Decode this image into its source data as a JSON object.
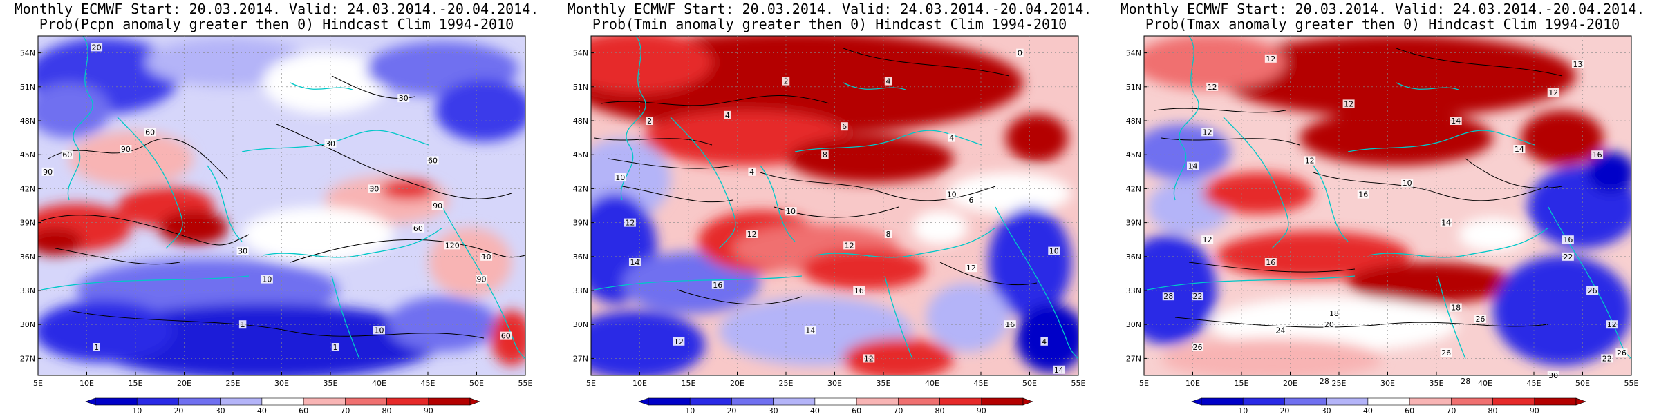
{
  "colors": {
    "prob_10": "#0000c8",
    "prob_20": "#2a2ae6",
    "prob_30": "#7070f0",
    "prob_40": "#b4b4f8",
    "prob_neutral": "#ffffff",
    "prob_60": "#f8b4b4",
    "prob_70": "#f07070",
    "prob_80": "#e62a2a",
    "prob_90": "#b40000",
    "coastline": "#00c8c8",
    "contour": "#000000"
  },
  "latitude_ticks": [
    "54N",
    "51N",
    "48N",
    "45N",
    "42N",
    "39N",
    "36N",
    "33N",
    "30N",
    "27N"
  ],
  "longitude_ticks": [
    "5E",
    "10E",
    "15E",
    "20E",
    "25E",
    "30E",
    "35E",
    "40E",
    "45E",
    "50E",
    "55E"
  ],
  "colorbar": {
    "labels": [
      "10",
      "20",
      "30",
      "40",
      "60",
      "70",
      "80",
      "90"
    ]
  },
  "panels": [
    {
      "title_line1": "Monthly ECMWF Start: 20.03.2014. Valid: 24.03.2014.-20.04.2014.",
      "title_line2": "Prob(Pcpn anomaly greater then 0) Hindcast Clim 1994-2010",
      "contour_labels": [
        {
          "text": "20",
          "lon": 11.0,
          "lat": 54.5
        },
        {
          "text": "60",
          "lon": 16.5,
          "lat": 47.0
        },
        {
          "text": "90",
          "lon": 14.0,
          "lat": 45.5
        },
        {
          "text": "60",
          "lon": 8.0,
          "lat": 45.0
        },
        {
          "text": "90",
          "lon": 6.0,
          "lat": 43.5
        },
        {
          "text": "30",
          "lon": 35.0,
          "lat": 46.0
        },
        {
          "text": "30",
          "lon": 42.5,
          "lat": 50.0
        },
        {
          "text": "30",
          "lon": 39.5,
          "lat": 42.0
        },
        {
          "text": "60",
          "lon": 45.5,
          "lat": 44.5
        },
        {
          "text": "90",
          "lon": 46.0,
          "lat": 40.5
        },
        {
          "text": "60",
          "lon": 44.0,
          "lat": 38.5
        },
        {
          "text": "120",
          "lon": 47.5,
          "lat": 37.0
        },
        {
          "text": "30",
          "lon": 26.0,
          "lat": 36.5
        },
        {
          "text": "10",
          "lon": 28.5,
          "lat": 34.0
        },
        {
          "text": "90",
          "lon": 50.5,
          "lat": 34.0
        },
        {
          "text": "10",
          "lon": 51.0,
          "lat": 36.0
        },
        {
          "text": "1",
          "lon": 11.0,
          "lat": 28.0
        },
        {
          "text": "1",
          "lon": 26.0,
          "lat": 30.0
        },
        {
          "text": "1",
          "lon": 35.5,
          "lat": 28.0
        },
        {
          "text": "10",
          "lon": 40.0,
          "lat": 29.5
        },
        {
          "text": "60",
          "lon": 53.0,
          "lat": 29.0
        }
      ]
    },
    {
      "title_line1": "Monthly ECMWF Start: 20.03.2014. Valid: 24.03.2014.-20.04.2014.",
      "title_line2": "Prob(Tmin anomaly greater then 0) Hindcast Clim 1994-2010",
      "contour_labels": [
        {
          "text": "0",
          "lon": 49.0,
          "lat": 54.0
        },
        {
          "text": "2",
          "lon": 25.0,
          "lat": 51.5
        },
        {
          "text": "4",
          "lon": 35.5,
          "lat": 51.5
        },
        {
          "text": "2",
          "lon": 11.0,
          "lat": 48.0
        },
        {
          "text": "4",
          "lon": 19.0,
          "lat": 48.5
        },
        {
          "text": "6",
          "lon": 31.0,
          "lat": 47.5
        },
        {
          "text": "4",
          "lon": 42.0,
          "lat": 46.5
        },
        {
          "text": "8",
          "lon": 29.0,
          "lat": 45.0
        },
        {
          "text": "4",
          "lon": 21.5,
          "lat": 43.5
        },
        {
          "text": "10",
          "lon": 8.0,
          "lat": 43.0
        },
        {
          "text": "12",
          "lon": 9.0,
          "lat": 39.0
        },
        {
          "text": "14",
          "lon": 9.5,
          "lat": 35.5
        },
        {
          "text": "16",
          "lon": 18.0,
          "lat": 33.5
        },
        {
          "text": "12",
          "lon": 21.5,
          "lat": 38.0
        },
        {
          "text": "10",
          "lon": 25.5,
          "lat": 40.0
        },
        {
          "text": "12",
          "lon": 31.5,
          "lat": 37.0
        },
        {
          "text": "14",
          "lon": 27.5,
          "lat": 29.5
        },
        {
          "text": "16",
          "lon": 32.5,
          "lat": 33.0
        },
        {
          "text": "8",
          "lon": 35.5,
          "lat": 38.0
        },
        {
          "text": "10",
          "lon": 42.0,
          "lat": 41.5
        },
        {
          "text": "6",
          "lon": 44.0,
          "lat": 41.0
        },
        {
          "text": "12",
          "lon": 44.0,
          "lat": 35.0
        },
        {
          "text": "10",
          "lon": 52.5,
          "lat": 36.5
        },
        {
          "text": "16",
          "lon": 48.0,
          "lat": 30.0
        },
        {
          "text": "12",
          "lon": 33.5,
          "lat": 27.0
        },
        {
          "text": "12",
          "lon": 14.0,
          "lat": 28.5
        },
        {
          "text": "4",
          "lon": 51.5,
          "lat": 28.5
        },
        {
          "text": "14",
          "lon": 53.0,
          "lat": 26.0
        }
      ]
    },
    {
      "title_line1": "Monthly ECMWF Start: 20.03.2014. Valid: 24.03.2014.-20.04.2014.",
      "title_line2": "Prob(Tmax anomaly greater then 0) Hindcast Clim 1994-2010",
      "contour_labels": [
        {
          "text": "12",
          "lon": 18.0,
          "lat": 53.5
        },
        {
          "text": "12",
          "lon": 12.0,
          "lat": 51.0
        },
        {
          "text": "13",
          "lon": 49.5,
          "lat": 53.0
        },
        {
          "text": "12",
          "lon": 47.0,
          "lat": 50.5
        },
        {
          "text": "12",
          "lon": 26.0,
          "lat": 49.5
        },
        {
          "text": "14",
          "lon": 37.0,
          "lat": 48.0
        },
        {
          "text": "12",
          "lon": 11.5,
          "lat": 47.0
        },
        {
          "text": "14",
          "lon": 43.5,
          "lat": 45.5
        },
        {
          "text": "16",
          "lon": 51.5,
          "lat": 45.0
        },
        {
          "text": "12",
          "lon": 22.0,
          "lat": 44.5
        },
        {
          "text": "14",
          "lon": 10.0,
          "lat": 44.0
        },
        {
          "text": "10",
          "lon": 32.0,
          "lat": 42.5
        },
        {
          "text": "16",
          "lon": 27.5,
          "lat": 41.5
        },
        {
          "text": "14",
          "lon": 36.0,
          "lat": 39.0
        },
        {
          "text": "16",
          "lon": 48.5,
          "lat": 37.5
        },
        {
          "text": "22",
          "lon": 48.5,
          "lat": 36.0
        },
        {
          "text": "12",
          "lon": 11.5,
          "lat": 37.5
        },
        {
          "text": "16",
          "lon": 18.0,
          "lat": 35.5
        },
        {
          "text": "28",
          "lon": 7.5,
          "lat": 32.5
        },
        {
          "text": "22",
          "lon": 10.5,
          "lat": 32.5
        },
        {
          "text": "18",
          "lon": 24.5,
          "lat": 31.0
        },
        {
          "text": "20",
          "lon": 24.0,
          "lat": 30.0
        },
        {
          "text": "18",
          "lon": 37.0,
          "lat": 31.5
        },
        {
          "text": "26",
          "lon": 39.5,
          "lat": 30.5
        },
        {
          "text": "24",
          "lon": 19.0,
          "lat": 29.5
        },
        {
          "text": "26",
          "lon": 10.5,
          "lat": 28.0
        },
        {
          "text": "26",
          "lon": 36.0,
          "lat": 27.5
        },
        {
          "text": "28",
          "lon": 23.5,
          "lat": 25.0
        },
        {
          "text": "28",
          "lon": 38.0,
          "lat": 25.0
        },
        {
          "text": "30",
          "lon": 47.0,
          "lat": 25.5
        },
        {
          "text": "12",
          "lon": 53.0,
          "lat": 30.0
        },
        {
          "text": "26",
          "lon": 51.0,
          "lat": 33.0
        },
        {
          "text": "22",
          "lon": 52.5,
          "lat": 27.0
        },
        {
          "text": "26",
          "lon": 54.0,
          "lat": 27.5
        }
      ]
    }
  ]
}
